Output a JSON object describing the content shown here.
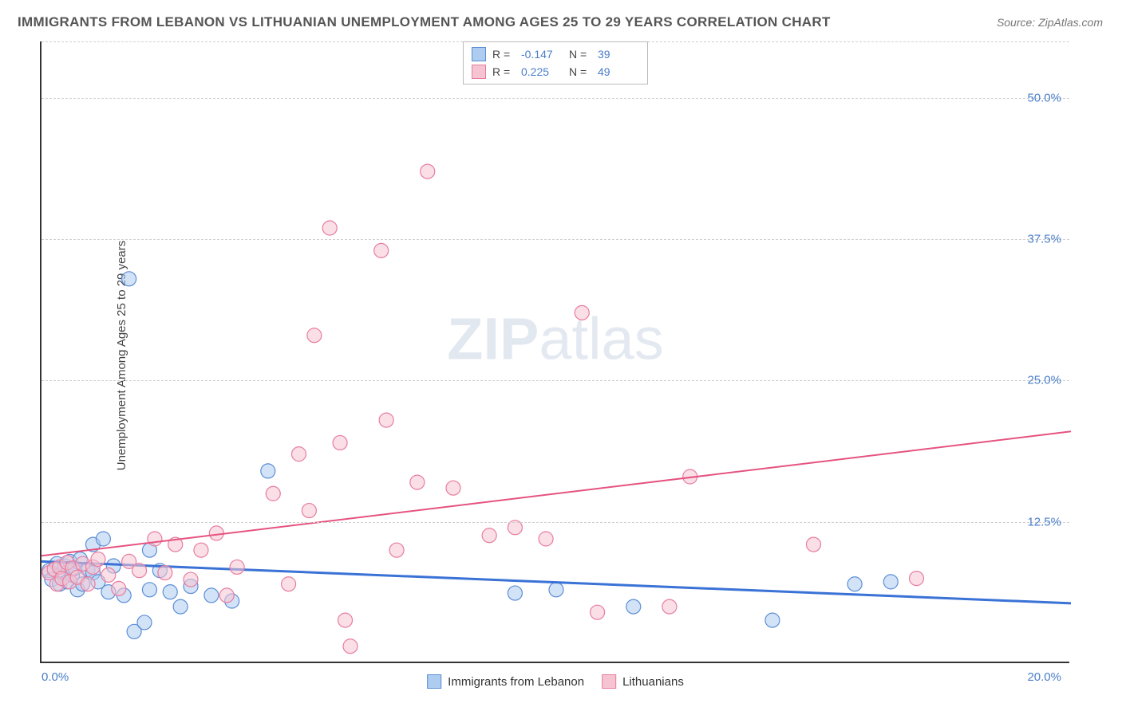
{
  "title": "IMMIGRANTS FROM LEBANON VS LITHUANIAN UNEMPLOYMENT AMONG AGES 25 TO 29 YEARS CORRELATION CHART",
  "source": "Source: ZipAtlas.com",
  "y_axis_label": "Unemployment Among Ages 25 to 29 years",
  "watermark_bold": "ZIP",
  "watermark_thin": "atlas",
  "chart": {
    "type": "scatter",
    "xlim": [
      0,
      20
    ],
    "ylim": [
      0,
      55
    ],
    "xtick_left": "0.0%",
    "xtick_right": "20.0%",
    "ytick_labels": [
      "12.5%",
      "25.0%",
      "37.5%",
      "50.0%"
    ],
    "ytick_values": [
      12.5,
      25.0,
      37.5,
      50.0
    ],
    "grid_values": [
      12.5,
      25.0,
      37.5,
      50.0,
      55.0
    ],
    "background_color": "#ffffff",
    "grid_color": "#d0d0d0",
    "axis_color": "#333333",
    "marker_radius": 9,
    "marker_opacity": 0.55,
    "series": [
      {
        "name": "Immigrants from Lebanon",
        "color_fill": "#aeccf0",
        "color_stroke": "#5b8ed6",
        "R": "-0.147",
        "N": "39",
        "trend": {
          "y_at_x0": 9.0,
          "y_at_x20": 5.3,
          "stroke": "#3a72d6",
          "width": 3
        },
        "points": [
          [
            0.15,
            8.2
          ],
          [
            0.2,
            7.4
          ],
          [
            0.3,
            8.8
          ],
          [
            0.35,
            7.0
          ],
          [
            0.4,
            8.0
          ],
          [
            0.45,
            8.6
          ],
          [
            0.5,
            7.2
          ],
          [
            0.55,
            9.0
          ],
          [
            0.6,
            7.8
          ],
          [
            0.65,
            8.4
          ],
          [
            0.7,
            6.5
          ],
          [
            0.75,
            9.2
          ],
          [
            0.8,
            7.0
          ],
          [
            0.9,
            8.3
          ],
          [
            1.0,
            10.5
          ],
          [
            1.0,
            8.0
          ],
          [
            1.1,
            7.2
          ],
          [
            1.2,
            11.0
          ],
          [
            1.3,
            6.3
          ],
          [
            1.4,
            8.6
          ],
          [
            1.6,
            6.0
          ],
          [
            1.8,
            2.8
          ],
          [
            2.0,
            3.6
          ],
          [
            2.1,
            6.5
          ],
          [
            2.1,
            10.0
          ],
          [
            2.3,
            8.2
          ],
          [
            2.5,
            6.3
          ],
          [
            2.7,
            5.0
          ],
          [
            2.9,
            6.8
          ],
          [
            4.4,
            17.0
          ],
          [
            3.3,
            6.0
          ],
          [
            3.7,
            5.5
          ],
          [
            1.7,
            34.0
          ],
          [
            9.2,
            6.2
          ],
          [
            10.0,
            6.5
          ],
          [
            14.2,
            3.8
          ],
          [
            15.8,
            7.0
          ],
          [
            16.5,
            7.2
          ],
          [
            11.5,
            5.0
          ]
        ]
      },
      {
        "name": "Lithuanians",
        "color_fill": "#f6c4d1",
        "color_stroke": "#e87ca0",
        "R": "0.225",
        "N": "49",
        "trend": {
          "y_at_x0": 9.5,
          "y_at_x20": 20.5,
          "stroke": "#e5537f",
          "width": 2
        },
        "points": [
          [
            0.15,
            8.0
          ],
          [
            0.25,
            8.3
          ],
          [
            0.3,
            7.0
          ],
          [
            0.35,
            8.5
          ],
          [
            0.4,
            7.5
          ],
          [
            0.5,
            8.9
          ],
          [
            0.55,
            7.2
          ],
          [
            0.6,
            8.4
          ],
          [
            0.7,
            7.6
          ],
          [
            0.8,
            8.8
          ],
          [
            0.9,
            7.0
          ],
          [
            1.0,
            8.5
          ],
          [
            1.1,
            9.2
          ],
          [
            1.3,
            7.8
          ],
          [
            1.5,
            6.6
          ],
          [
            1.7,
            9.0
          ],
          [
            1.9,
            8.2
          ],
          [
            2.2,
            11.0
          ],
          [
            2.4,
            8.0
          ],
          [
            2.6,
            10.5
          ],
          [
            2.9,
            7.4
          ],
          [
            3.1,
            10.0
          ],
          [
            3.4,
            11.5
          ],
          [
            3.8,
            8.5
          ],
          [
            4.5,
            15.0
          ],
          [
            5.0,
            18.5
          ],
          [
            5.2,
            13.5
          ],
          [
            5.3,
            29.0
          ],
          [
            5.6,
            38.5
          ],
          [
            5.8,
            19.5
          ],
          [
            5.9,
            3.8
          ],
          [
            6.0,
            1.5
          ],
          [
            6.6,
            36.5
          ],
          [
            6.7,
            21.5
          ],
          [
            6.9,
            10.0
          ],
          [
            7.3,
            16.0
          ],
          [
            7.5,
            43.5
          ],
          [
            8.0,
            15.5
          ],
          [
            8.7,
            11.3
          ],
          [
            9.2,
            12.0
          ],
          [
            9.8,
            11.0
          ],
          [
            10.5,
            31.0
          ],
          [
            10.8,
            4.5
          ],
          [
            12.2,
            5.0
          ],
          [
            12.6,
            16.5
          ],
          [
            15.0,
            10.5
          ],
          [
            17.0,
            7.5
          ],
          [
            4.8,
            7.0
          ],
          [
            3.6,
            6.0
          ]
        ]
      }
    ]
  },
  "legend_top": {
    "r_label": "R =",
    "n_label": "N ="
  }
}
